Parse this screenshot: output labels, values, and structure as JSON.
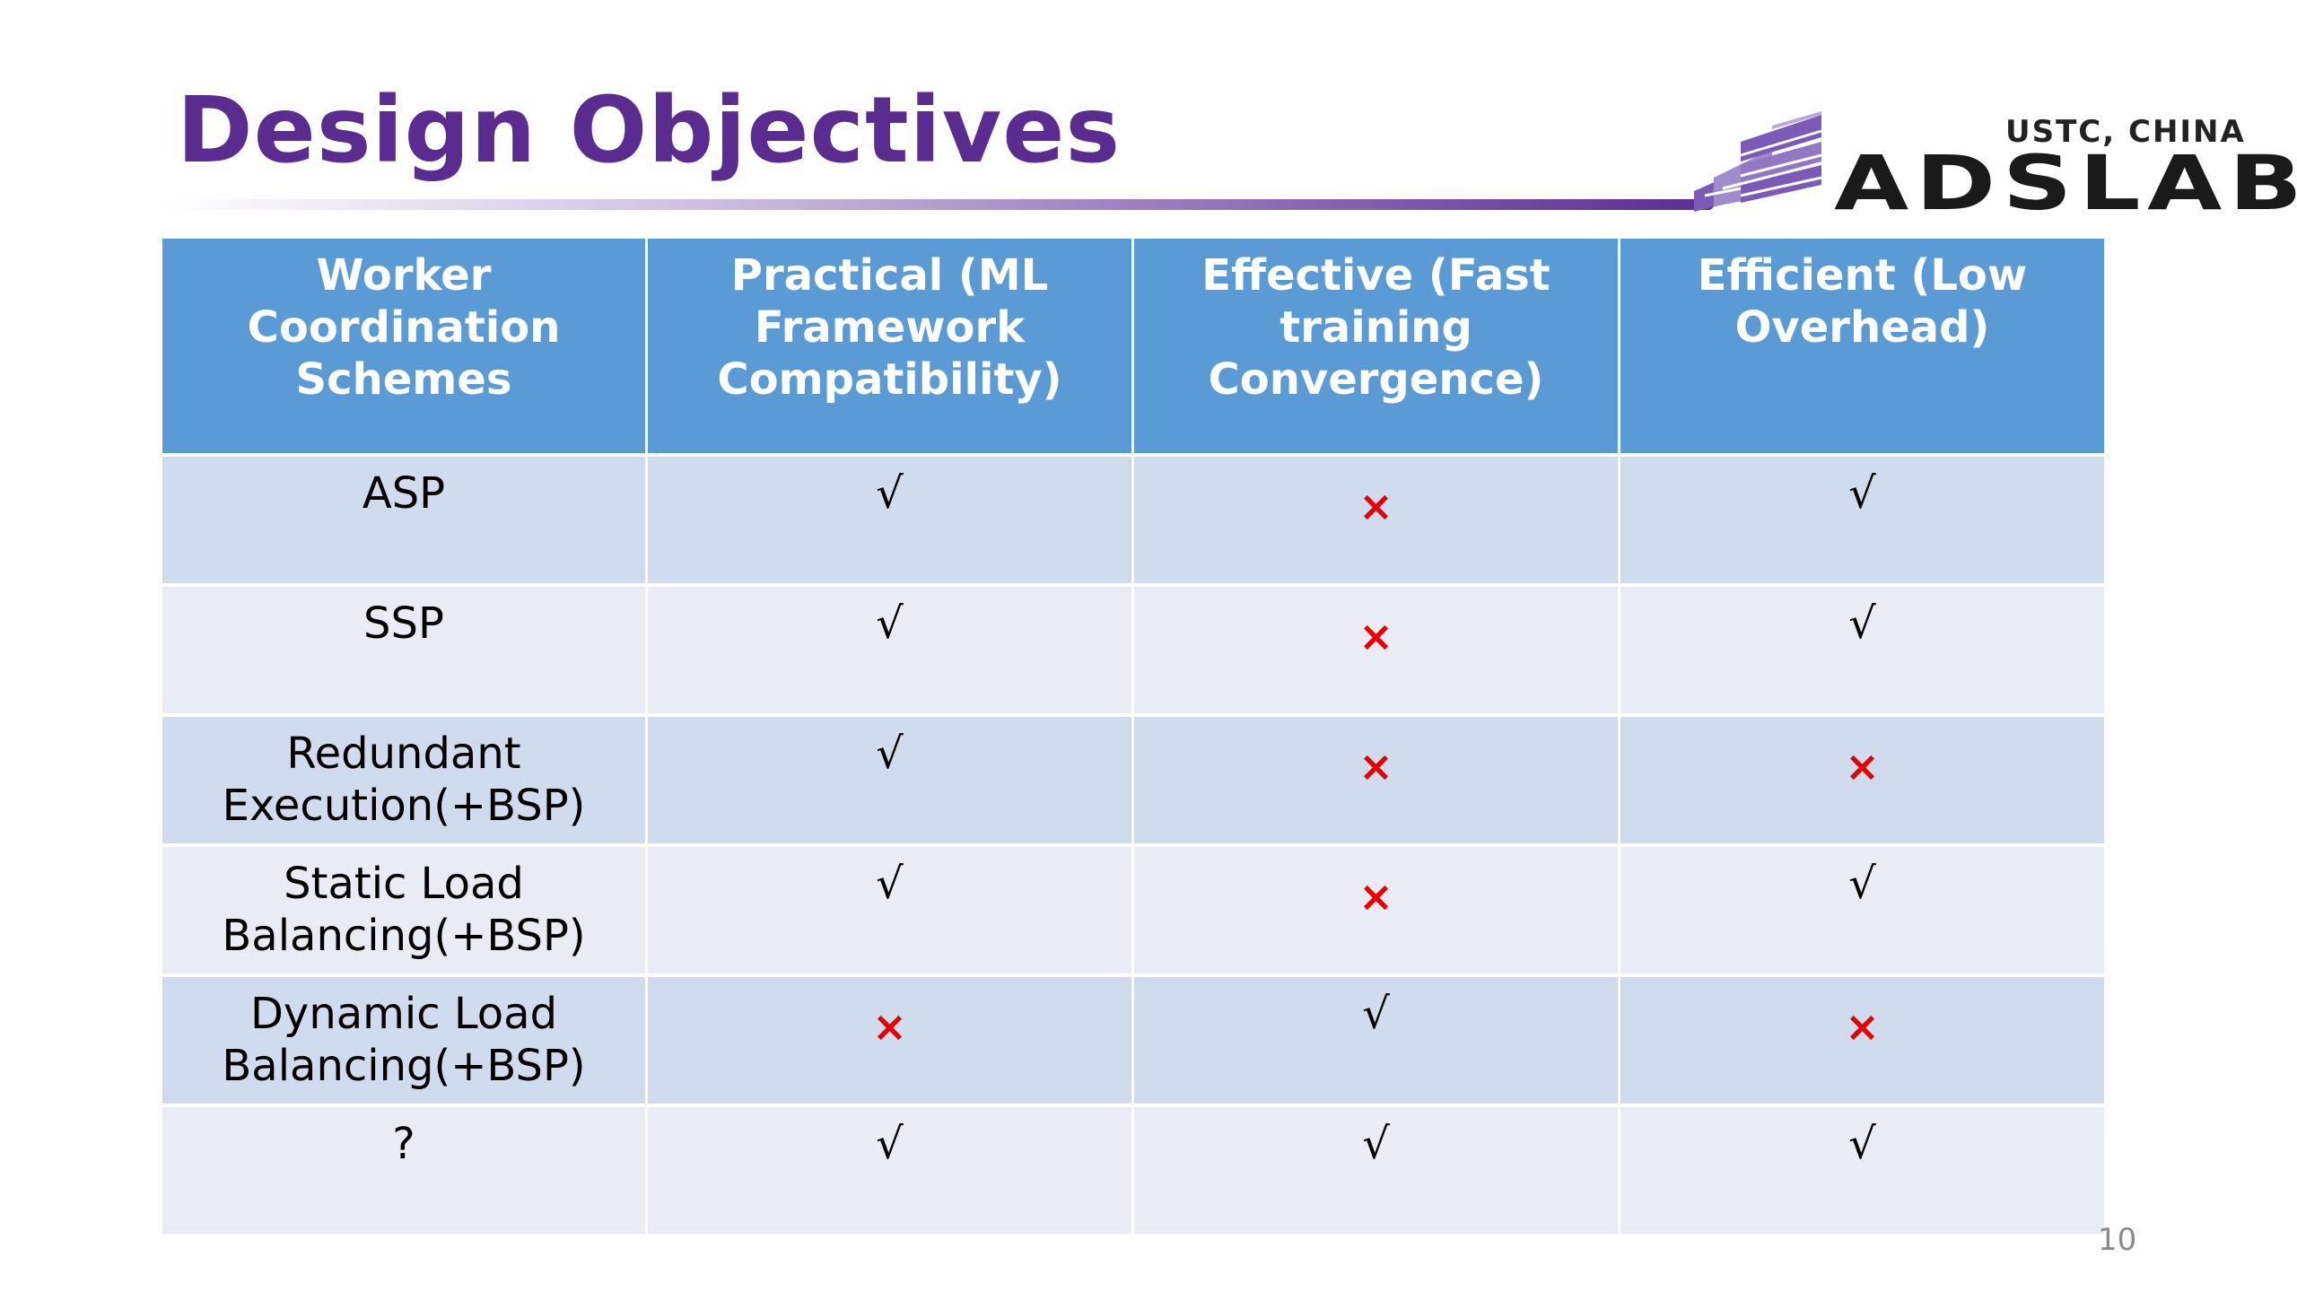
{
  "slide": {
    "title": "Design Objectives",
    "page_number": "10"
  },
  "logo": {
    "subtitle": "USTC, CHINA",
    "name": "ADSLAB",
    "colors": {
      "purple": "#7b5ab8",
      "light_purple": "#a08ccc",
      "text": "#1a1a1a"
    }
  },
  "table": {
    "headers": [
      "Worker Coordination Schemes",
      "Practical (ML Framework Compatibility)",
      "Effective (Fast training Convergence)",
      "Efficient (Low Overhead)"
    ],
    "rows": [
      {
        "scheme": "ASP",
        "practical": "√",
        "effective": "×",
        "efficient": "√"
      },
      {
        "scheme": "SSP",
        "practical": "√",
        "effective": "×",
        "efficient": "√"
      },
      {
        "scheme": "Redundant Execution(+BSP)",
        "practical": "√",
        "effective": "×",
        "efficient": "×"
      },
      {
        "scheme": "Static Load Balancing(+BSP)",
        "practical": "√",
        "effective": "×",
        "efficient": "√"
      },
      {
        "scheme": "Dynamic Load Balancing(+BSP)",
        "practical": "×",
        "effective": "√",
        "efficient": "×"
      },
      {
        "scheme": "?",
        "practical": "√",
        "effective": "√",
        "efficient": "√"
      }
    ],
    "colors": {
      "header_bg": "#5b9bd5",
      "row_odd_bg": "#d0dcee",
      "row_even_bg": "#e9ecf5",
      "cross": "#e60000",
      "check": "#000000"
    }
  }
}
